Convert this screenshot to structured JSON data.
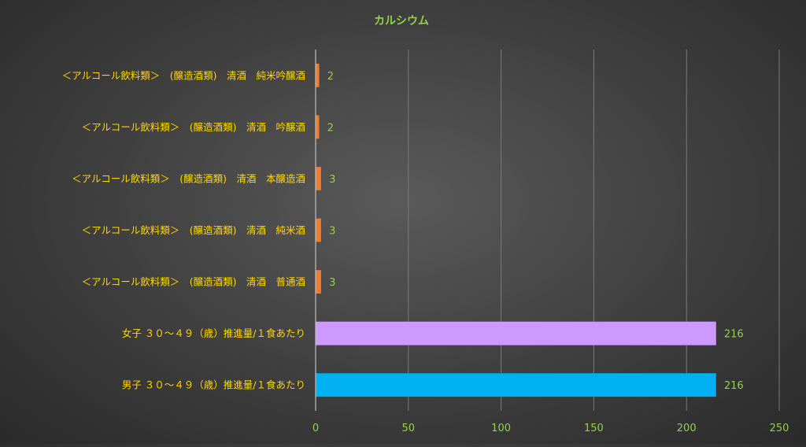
{
  "chart_data": {
    "type": "bar",
    "orientation": "horizontal",
    "title": "カルシウム",
    "categories": [
      "＜アルコール飲料類＞　(醸造酒類)　清酒　純米吟醸酒",
      "＜アルコール飲料類＞　(醸造酒類)　清酒　吟醸酒",
      "＜アルコール飲料類＞　(醸造酒類)　清酒　本醸造酒",
      "＜アルコール飲料類＞　(醸造酒類)　清酒　純米酒",
      "＜アルコール飲料類＞　(醸造酒類)　清酒　普通酒",
      "女子 ３０～４９（歳）推進量/１食あたり",
      "男子 ３０～４９（歳）推進量/１食あたり"
    ],
    "values": [
      2,
      2,
      3,
      3,
      3,
      216,
      216
    ],
    "data_labels": [
      "2",
      "2",
      "3",
      "3",
      "3",
      "216",
      "216"
    ],
    "bar_colors": [
      "#ed7d31",
      "#ed7d31",
      "#ed7d31",
      "#ed7d31",
      "#ed7d31",
      "#cc99ff",
      "#00b0f0"
    ],
    "xlim": [
      0,
      250
    ],
    "xticks": [
      0,
      50,
      100,
      150,
      200,
      250
    ],
    "xtick_labels": [
      "0",
      "50",
      "100",
      "150",
      "200",
      "250"
    ],
    "grid": true,
    "colors": {
      "title": "#92d050",
      "category_labels": "#ffd700",
      "data_labels": "#92d050",
      "tick_labels": "#92d050"
    }
  }
}
